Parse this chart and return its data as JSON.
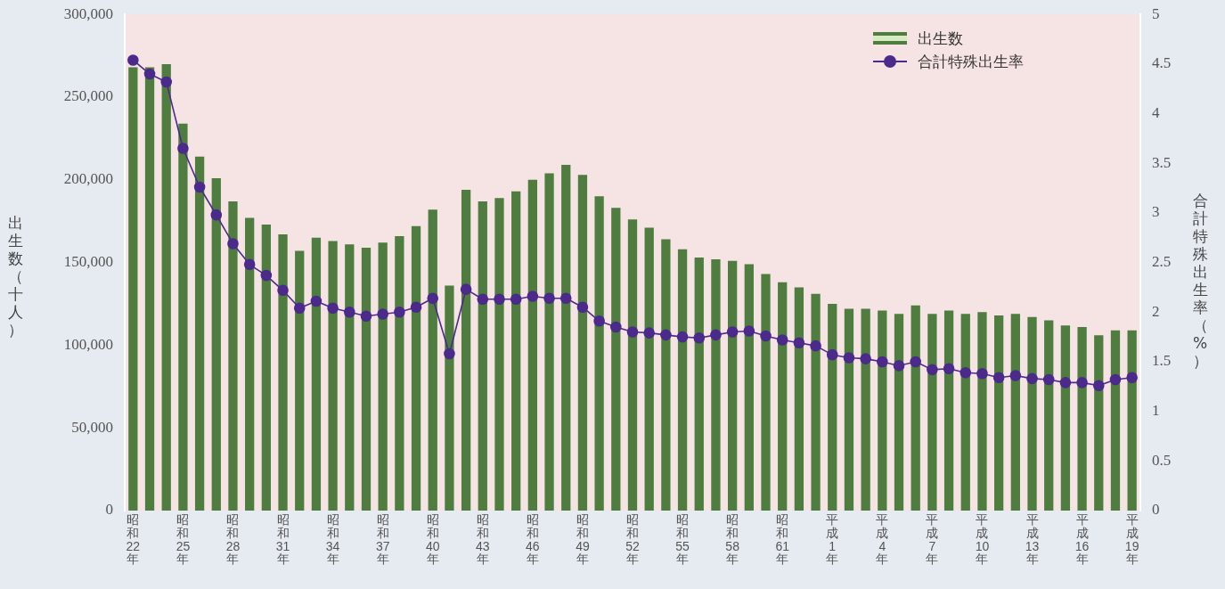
{
  "chart_data": {
    "type": "bar",
    "categories": [
      "昭和22年",
      null,
      null,
      "昭和25年",
      null,
      null,
      "昭和28年",
      null,
      null,
      "昭和31年",
      null,
      null,
      "昭和34年",
      null,
      null,
      "昭和37年",
      null,
      null,
      "昭和40年",
      null,
      null,
      "昭和43年",
      null,
      null,
      "昭和46年",
      null,
      null,
      "昭和49年",
      null,
      null,
      "昭和52年",
      null,
      null,
      "昭和55年",
      null,
      null,
      "昭和58年",
      null,
      null,
      "昭和61年",
      null,
      null,
      "平成1年",
      null,
      null,
      "平成4年",
      null,
      null,
      "平成7年",
      null,
      null,
      "平成10年",
      null,
      null,
      "平成13年",
      null,
      null,
      "平成16年",
      null,
      null,
      "平成19年"
    ],
    "series": [
      {
        "name": "出生数",
        "color": "#4f7d3f",
        "values": [
          268000,
          268000,
          270000,
          234000,
          214000,
          201000,
          187000,
          177000,
          173000,
          167000,
          157000,
          165000,
          163000,
          161000,
          159000,
          162000,
          166000,
          172000,
          182000,
          136000,
          194000,
          187000,
          189000,
          193000,
          200000,
          204000,
          209000,
          203000,
          190000,
          183000,
          176000,
          171000,
          164000,
          158000,
          153000,
          152000,
          151000,
          149000,
          143000,
          138000,
          135000,
          131000,
          125000,
          122000,
          122000,
          121000,
          119000,
          124000,
          119000,
          121000,
          119000,
          120000,
          118000,
          119000,
          117000,
          115000,
          112000,
          111000,
          106000,
          109000,
          109000
        ]
      },
      {
        "name": "合計特殊出生率",
        "type": "line",
        "axis": "y2",
        "color": "#4b2a8c",
        "values": [
          4.54,
          4.4,
          4.32,
          3.65,
          3.26,
          2.98,
          2.69,
          2.48,
          2.37,
          2.22,
          2.04,
          2.11,
          2.04,
          2.0,
          1.96,
          1.98,
          2.0,
          2.05,
          2.14,
          1.58,
          2.23,
          2.13,
          2.13,
          2.13,
          2.16,
          2.14,
          2.14,
          2.05,
          1.91,
          1.85,
          1.8,
          1.79,
          1.77,
          1.75,
          1.74,
          1.77,
          1.8,
          1.81,
          1.76,
          1.72,
          1.69,
          1.66,
          1.57,
          1.54,
          1.53,
          1.5,
          1.46,
          1.5,
          1.42,
          1.43,
          1.39,
          1.38,
          1.34,
          1.36,
          1.33,
          1.32,
          1.29,
          1.29,
          1.26,
          1.32,
          1.34
        ]
      }
    ],
    "ylabel": "出生数（十人）",
    "y2label": "合計特殊出生率（%）",
    "ylim": [
      0,
      300000
    ],
    "yticks": [
      0,
      {
        "value": 50000,
        "label": "50,000"
      },
      {
        "value": 100000,
        "label": "100,000"
      },
      {
        "value": 150000,
        "label": "150,000"
      },
      {
        "value": 200000,
        "label": "200,000"
      },
      {
        "value": 250000,
        "label": "250,000"
      },
      {
        "value": 300000,
        "label": "300,000"
      }
    ],
    "y2lim": [
      0,
      5
    ],
    "y2ticks": [
      0,
      0.5,
      1,
      1.5,
      2,
      2.5,
      3,
      3.5,
      4,
      4.5,
      5
    ],
    "legend": "top right",
    "marker": "circle",
    "grid": false
  }
}
